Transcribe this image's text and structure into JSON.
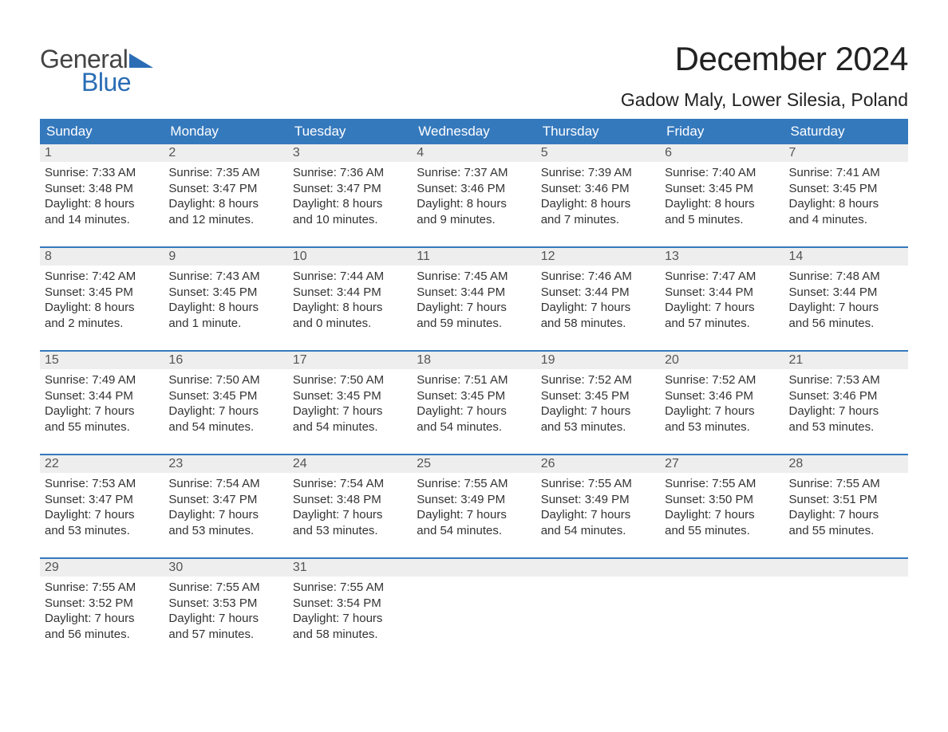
{
  "logo": {
    "text_general": "General",
    "text_blue": "Blue",
    "triangle_color": "#2a6db5"
  },
  "title": "December 2024",
  "location": "Gadow Maly, Lower Silesia, Poland",
  "colors": {
    "header_bg": "#3579bd",
    "header_text": "#ffffff",
    "daynum_bg": "#eeeeee",
    "week_border": "#3579bd",
    "body_text": "#333333",
    "logo_blue": "#2a6db5",
    "background": "#ffffff"
  },
  "typography": {
    "title_fontsize": 42,
    "location_fontsize": 23,
    "dow_fontsize": 17,
    "body_fontsize": 15,
    "font_family": "Arial"
  },
  "layout": {
    "columns": 7,
    "rows": 5,
    "cell_min_height": 128
  },
  "days_of_week": [
    "Sunday",
    "Monday",
    "Tuesday",
    "Wednesday",
    "Thursday",
    "Friday",
    "Saturday"
  ],
  "weeks": [
    [
      {
        "n": "1",
        "sunrise": "Sunrise: 7:33 AM",
        "sunset": "Sunset: 3:48 PM",
        "d1": "Daylight: 8 hours",
        "d2": "and 14 minutes."
      },
      {
        "n": "2",
        "sunrise": "Sunrise: 7:35 AM",
        "sunset": "Sunset: 3:47 PM",
        "d1": "Daylight: 8 hours",
        "d2": "and 12 minutes."
      },
      {
        "n": "3",
        "sunrise": "Sunrise: 7:36 AM",
        "sunset": "Sunset: 3:47 PM",
        "d1": "Daylight: 8 hours",
        "d2": "and 10 minutes."
      },
      {
        "n": "4",
        "sunrise": "Sunrise: 7:37 AM",
        "sunset": "Sunset: 3:46 PM",
        "d1": "Daylight: 8 hours",
        "d2": "and 9 minutes."
      },
      {
        "n": "5",
        "sunrise": "Sunrise: 7:39 AM",
        "sunset": "Sunset: 3:46 PM",
        "d1": "Daylight: 8 hours",
        "d2": "and 7 minutes."
      },
      {
        "n": "6",
        "sunrise": "Sunrise: 7:40 AM",
        "sunset": "Sunset: 3:45 PM",
        "d1": "Daylight: 8 hours",
        "d2": "and 5 minutes."
      },
      {
        "n": "7",
        "sunrise": "Sunrise: 7:41 AM",
        "sunset": "Sunset: 3:45 PM",
        "d1": "Daylight: 8 hours",
        "d2": "and 4 minutes."
      }
    ],
    [
      {
        "n": "8",
        "sunrise": "Sunrise: 7:42 AM",
        "sunset": "Sunset: 3:45 PM",
        "d1": "Daylight: 8 hours",
        "d2": "and 2 minutes."
      },
      {
        "n": "9",
        "sunrise": "Sunrise: 7:43 AM",
        "sunset": "Sunset: 3:45 PM",
        "d1": "Daylight: 8 hours",
        "d2": "and 1 minute."
      },
      {
        "n": "10",
        "sunrise": "Sunrise: 7:44 AM",
        "sunset": "Sunset: 3:44 PM",
        "d1": "Daylight: 8 hours",
        "d2": "and 0 minutes."
      },
      {
        "n": "11",
        "sunrise": "Sunrise: 7:45 AM",
        "sunset": "Sunset: 3:44 PM",
        "d1": "Daylight: 7 hours",
        "d2": "and 59 minutes."
      },
      {
        "n": "12",
        "sunrise": "Sunrise: 7:46 AM",
        "sunset": "Sunset: 3:44 PM",
        "d1": "Daylight: 7 hours",
        "d2": "and 58 minutes."
      },
      {
        "n": "13",
        "sunrise": "Sunrise: 7:47 AM",
        "sunset": "Sunset: 3:44 PM",
        "d1": "Daylight: 7 hours",
        "d2": "and 57 minutes."
      },
      {
        "n": "14",
        "sunrise": "Sunrise: 7:48 AM",
        "sunset": "Sunset: 3:44 PM",
        "d1": "Daylight: 7 hours",
        "d2": "and 56 minutes."
      }
    ],
    [
      {
        "n": "15",
        "sunrise": "Sunrise: 7:49 AM",
        "sunset": "Sunset: 3:44 PM",
        "d1": "Daylight: 7 hours",
        "d2": "and 55 minutes."
      },
      {
        "n": "16",
        "sunrise": "Sunrise: 7:50 AM",
        "sunset": "Sunset: 3:45 PM",
        "d1": "Daylight: 7 hours",
        "d2": "and 54 minutes."
      },
      {
        "n": "17",
        "sunrise": "Sunrise: 7:50 AM",
        "sunset": "Sunset: 3:45 PM",
        "d1": "Daylight: 7 hours",
        "d2": "and 54 minutes."
      },
      {
        "n": "18",
        "sunrise": "Sunrise: 7:51 AM",
        "sunset": "Sunset: 3:45 PM",
        "d1": "Daylight: 7 hours",
        "d2": "and 54 minutes."
      },
      {
        "n": "19",
        "sunrise": "Sunrise: 7:52 AM",
        "sunset": "Sunset: 3:45 PM",
        "d1": "Daylight: 7 hours",
        "d2": "and 53 minutes."
      },
      {
        "n": "20",
        "sunrise": "Sunrise: 7:52 AM",
        "sunset": "Sunset: 3:46 PM",
        "d1": "Daylight: 7 hours",
        "d2": "and 53 minutes."
      },
      {
        "n": "21",
        "sunrise": "Sunrise: 7:53 AM",
        "sunset": "Sunset: 3:46 PM",
        "d1": "Daylight: 7 hours",
        "d2": "and 53 minutes."
      }
    ],
    [
      {
        "n": "22",
        "sunrise": "Sunrise: 7:53 AM",
        "sunset": "Sunset: 3:47 PM",
        "d1": "Daylight: 7 hours",
        "d2": "and 53 minutes."
      },
      {
        "n": "23",
        "sunrise": "Sunrise: 7:54 AM",
        "sunset": "Sunset: 3:47 PM",
        "d1": "Daylight: 7 hours",
        "d2": "and 53 minutes."
      },
      {
        "n": "24",
        "sunrise": "Sunrise: 7:54 AM",
        "sunset": "Sunset: 3:48 PM",
        "d1": "Daylight: 7 hours",
        "d2": "and 53 minutes."
      },
      {
        "n": "25",
        "sunrise": "Sunrise: 7:55 AM",
        "sunset": "Sunset: 3:49 PM",
        "d1": "Daylight: 7 hours",
        "d2": "and 54 minutes."
      },
      {
        "n": "26",
        "sunrise": "Sunrise: 7:55 AM",
        "sunset": "Sunset: 3:49 PM",
        "d1": "Daylight: 7 hours",
        "d2": "and 54 minutes."
      },
      {
        "n": "27",
        "sunrise": "Sunrise: 7:55 AM",
        "sunset": "Sunset: 3:50 PM",
        "d1": "Daylight: 7 hours",
        "d2": "and 55 minutes."
      },
      {
        "n": "28",
        "sunrise": "Sunrise: 7:55 AM",
        "sunset": "Sunset: 3:51 PM",
        "d1": "Daylight: 7 hours",
        "d2": "and 55 minutes."
      }
    ],
    [
      {
        "n": "29",
        "sunrise": "Sunrise: 7:55 AM",
        "sunset": "Sunset: 3:52 PM",
        "d1": "Daylight: 7 hours",
        "d2": "and 56 minutes."
      },
      {
        "n": "30",
        "sunrise": "Sunrise: 7:55 AM",
        "sunset": "Sunset: 3:53 PM",
        "d1": "Daylight: 7 hours",
        "d2": "and 57 minutes."
      },
      {
        "n": "31",
        "sunrise": "Sunrise: 7:55 AM",
        "sunset": "Sunset: 3:54 PM",
        "d1": "Daylight: 7 hours",
        "d2": "and 58 minutes."
      },
      {
        "n": "",
        "sunrise": "",
        "sunset": "",
        "d1": "",
        "d2": ""
      },
      {
        "n": "",
        "sunrise": "",
        "sunset": "",
        "d1": "",
        "d2": ""
      },
      {
        "n": "",
        "sunrise": "",
        "sunset": "",
        "d1": "",
        "d2": ""
      },
      {
        "n": "",
        "sunrise": "",
        "sunset": "",
        "d1": "",
        "d2": ""
      }
    ]
  ]
}
